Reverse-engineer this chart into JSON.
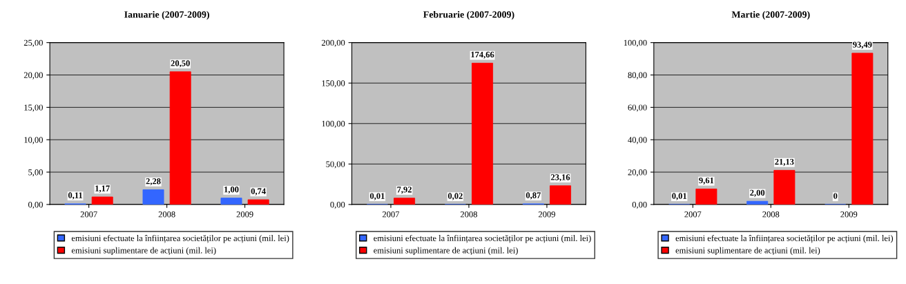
{
  "chart_data": [
    {
      "type": "bar",
      "title": "Ianuarie (2007-2009)",
      "categories": [
        "2007",
        "2008",
        "2009"
      ],
      "series": [
        {
          "name": "emisiuni efectuate la înființarea societăților pe acțiuni (mil. lei)",
          "color": "#3366ff",
          "values": [
            0.11,
            2.28,
            1.0
          ],
          "value_labels": [
            "0,11",
            "2,28",
            "1,00"
          ]
        },
        {
          "name": "emisiuni suplimentare de acțiuni (mil. lei)",
          "color": "#ff0000",
          "values": [
            1.17,
            20.5,
            0.74
          ],
          "value_labels": [
            "1,17",
            "20,50",
            "0,74"
          ]
        }
      ],
      "ylim": [
        0,
        25
      ],
      "yticks": [
        {
          "value": 0,
          "label": "0,00"
        },
        {
          "value": 5,
          "label": "5,00"
        },
        {
          "value": 10,
          "label": "10,00"
        },
        {
          "value": 15,
          "label": "15,00"
        },
        {
          "value": 20,
          "label": "20,00"
        },
        {
          "value": 25,
          "label": "25,00"
        }
      ],
      "grid": "y",
      "legend": "bottom"
    },
    {
      "type": "bar",
      "title": "Februarie (2007-2009)",
      "categories": [
        "2007",
        "2008",
        "2009"
      ],
      "series": [
        {
          "name": "emisiuni efectuate la înființarea societăților pe acțiuni (mil. lei)",
          "color": "#3366ff",
          "values": [
            0.01,
            0.02,
            0.87
          ],
          "value_labels": [
            "0,01",
            "0,02",
            "0,87"
          ]
        },
        {
          "name": "emisiuni suplimentare de acțiuni (mil. lei)",
          "color": "#ff0000",
          "values": [
            7.92,
            174.66,
            23.16
          ],
          "value_labels": [
            "7,92",
            "174,66",
            "23,16"
          ]
        }
      ],
      "ylim": [
        0,
        200
      ],
      "yticks": [
        {
          "value": 0,
          "label": "0,00"
        },
        {
          "value": 50,
          "label": "50,00"
        },
        {
          "value": 100,
          "label": "100,00"
        },
        {
          "value": 150,
          "label": "150,00"
        },
        {
          "value": 200,
          "label": "200,00"
        }
      ],
      "grid": "y",
      "legend": "bottom"
    },
    {
      "type": "bar",
      "title": "Martie (2007-2009)",
      "categories": [
        "2007",
        "2008",
        "2009"
      ],
      "series": [
        {
          "name": "emisiuni efectuate la înființarea societăților pe acțiuni (mil. lei)",
          "color": "#3366ff",
          "values": [
            0.01,
            2.0,
            0
          ],
          "value_labels": [
            "0,01",
            "2,00",
            "0"
          ]
        },
        {
          "name": "emisiuni suplimentare de acțiuni (mil. lei)",
          "color": "#ff0000",
          "values": [
            9.61,
            21.13,
            93.49
          ],
          "value_labels": [
            "9,61",
            "21,13",
            "93,49"
          ]
        }
      ],
      "ylim": [
        0,
        100
      ],
      "yticks": [
        {
          "value": 0,
          "label": "0,00"
        },
        {
          "value": 20,
          "label": "20,00"
        },
        {
          "value": 40,
          "label": "40,00"
        },
        {
          "value": 60,
          "label": "60,00"
        },
        {
          "value": 80,
          "label": "80,00"
        },
        {
          "value": 100,
          "label": "100,00"
        }
      ],
      "grid": "y",
      "legend": "bottom"
    }
  ]
}
